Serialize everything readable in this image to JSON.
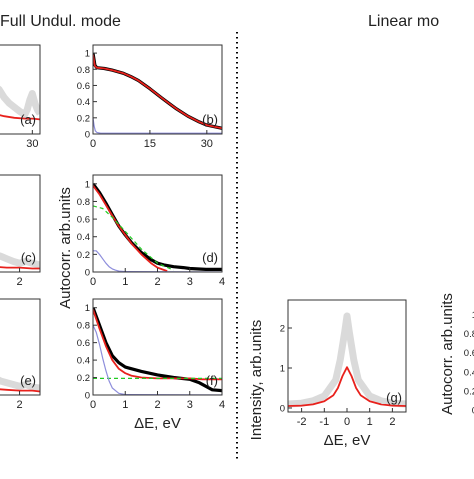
{
  "headers": {
    "left": "Full Undul. mode",
    "right": "Linear mo"
  },
  "chart_data": [
    {
      "id": "a",
      "type": "line",
      "panel_label": "(a)",
      "xticks": [
        {
          "v": 30,
          "t": "30"
        }
      ],
      "yticks": [],
      "xlim": [
        0,
        36
      ],
      "ylim": [
        0,
        1.1
      ],
      "series": [
        {
          "role": "noise",
          "color": "#bbbbbb",
          "x": [
            0,
            4,
            8,
            12,
            16,
            20,
            24,
            26,
            28,
            30,
            32,
            34,
            36
          ],
          "y": [
            0.6,
            0.55,
            0.45,
            0.38,
            0.33,
            0.28,
            0.24,
            0.3,
            0.42,
            0.5,
            0.38,
            0.3,
            0.25
          ]
        },
        {
          "role": "fit",
          "color": "#e8211c",
          "x": [
            0,
            8,
            16,
            24,
            30,
            36
          ],
          "y": [
            0.25,
            0.22,
            0.2,
            0.19,
            0.19,
            0.18
          ]
        }
      ]
    },
    {
      "id": "b",
      "type": "line",
      "panel_label": "(b)",
      "xticks": [
        {
          "v": 0,
          "t": "0"
        },
        {
          "v": 15,
          "t": "15"
        },
        {
          "v": 30,
          "t": "30"
        }
      ],
      "yticks": [
        {
          "v": 0,
          "t": "0"
        },
        {
          "v": 0.2,
          "t": "0.2"
        },
        {
          "v": 0.4,
          "t": "0.4"
        },
        {
          "v": 0.6,
          "t": "0.6"
        },
        {
          "v": 0.8,
          "t": "0.8"
        },
        {
          "v": 1,
          "t": "1"
        }
      ],
      "xlim": [
        0,
        34
      ],
      "ylim": [
        0,
        1.1
      ],
      "series": [
        {
          "role": "data",
          "color": "#000000",
          "x": [
            0,
            0.5,
            1,
            3,
            5,
            8,
            10,
            12,
            15,
            18,
            20,
            22,
            25,
            28,
            30,
            32,
            34
          ],
          "y": [
            1.0,
            0.85,
            0.82,
            0.81,
            0.79,
            0.75,
            0.71,
            0.66,
            0.56,
            0.45,
            0.38,
            0.31,
            0.22,
            0.15,
            0.11,
            0.09,
            0.07
          ]
        },
        {
          "role": "fit",
          "color": "#e8211c",
          "x": [
            0,
            0.5,
            1,
            3,
            5,
            8,
            10,
            12,
            15,
            18,
            20,
            22,
            25,
            28,
            30,
            32,
            34
          ],
          "y": [
            0.98,
            0.84,
            0.82,
            0.81,
            0.79,
            0.75,
            0.71,
            0.66,
            0.56,
            0.45,
            0.38,
            0.31,
            0.22,
            0.15,
            0.11,
            0.09,
            0.07
          ]
        },
        {
          "role": "component",
          "color": "#8e8edc",
          "x": [
            0,
            0.3,
            0.6,
            1,
            2,
            34
          ],
          "y": [
            0.2,
            0.1,
            0.04,
            0.02,
            0.01,
            0.01
          ]
        }
      ]
    },
    {
      "id": "c",
      "type": "line",
      "panel_label": "(c)",
      "xticks": [
        {
          "v": 2,
          "t": "2"
        }
      ],
      "yticks": [],
      "xlim": [
        0,
        3.6
      ],
      "ylim": [
        0,
        1.1
      ],
      "series": [
        {
          "role": "noise",
          "color": "#bbbbbb",
          "x": [
            0,
            0.5,
            1,
            1.5,
            2,
            2.5,
            3,
            3.6
          ],
          "y": [
            0.2,
            0.18,
            0.15,
            0.12,
            0.1,
            0.12,
            0.1,
            0.08
          ]
        },
        {
          "role": "fit",
          "color": "#e8211c",
          "x": [
            0,
            1,
            2,
            3,
            3.6
          ],
          "y": [
            0.06,
            0.05,
            0.05,
            0.04,
            0.04
          ]
        }
      ]
    },
    {
      "id": "d",
      "type": "line",
      "panel_label": "(d)",
      "xticks": [
        {
          "v": 0,
          "t": "0"
        },
        {
          "v": 1,
          "t": "1"
        },
        {
          "v": 2,
          "t": "2"
        },
        {
          "v": 3,
          "t": "3"
        },
        {
          "v": 4,
          "t": "4"
        }
      ],
      "yticks": [
        {
          "v": 0,
          "t": "0"
        },
        {
          "v": 0.2,
          "t": "0.2"
        },
        {
          "v": 0.4,
          "t": "0.4"
        },
        {
          "v": 0.6,
          "t": "0.6"
        },
        {
          "v": 0.8,
          "t": "0.8"
        },
        {
          "v": 1,
          "t": "1"
        }
      ],
      "xlim": [
        0,
        4
      ],
      "ylim": [
        0,
        1.1
      ],
      "series": [
        {
          "role": "data",
          "color": "#000000",
          "x": [
            0,
            0.2,
            0.4,
            0.6,
            0.8,
            1,
            1.2,
            1.5,
            1.8,
            2,
            2.2,
            2.5,
            2.8,
            3,
            3.5,
            4
          ],
          "y": [
            1.0,
            0.9,
            0.78,
            0.65,
            0.52,
            0.42,
            0.33,
            0.22,
            0.14,
            0.1,
            0.08,
            0.06,
            0.05,
            0.04,
            0.03,
            0.03
          ]
        },
        {
          "role": "fit",
          "color": "#e8211c",
          "x": [
            0,
            0.2,
            0.4,
            0.6,
            0.8,
            1,
            1.2,
            1.5,
            1.8,
            2,
            2.3
          ],
          "y": [
            0.98,
            0.88,
            0.76,
            0.64,
            0.52,
            0.42,
            0.32,
            0.2,
            0.1,
            0.05,
            0.01
          ]
        },
        {
          "role": "model",
          "color": "#22cc22",
          "dash": "4 3",
          "x": [
            0,
            0.3,
            0.6,
            1,
            1.5,
            2,
            2.5
          ],
          "y": [
            0.75,
            0.72,
            0.62,
            0.46,
            0.26,
            0.1,
            0.02
          ]
        },
        {
          "role": "component",
          "color": "#8e8edc",
          "x": [
            0,
            0.1,
            0.2,
            0.3,
            0.4,
            0.5,
            0.6,
            0.7,
            0.8,
            1,
            4
          ],
          "y": [
            0.24,
            0.24,
            0.2,
            0.15,
            0.1,
            0.06,
            0.035,
            0.02,
            0.01,
            0.005,
            0.0
          ]
        }
      ]
    },
    {
      "id": "e",
      "type": "line",
      "panel_label": "(e)",
      "xticks": [
        {
          "v": 2,
          "t": "2"
        }
      ],
      "yticks": [],
      "xlim": [
        0,
        3.6
      ],
      "ylim": [
        0,
        1.1
      ],
      "series": [
        {
          "role": "noise",
          "color": "#bbbbbb",
          "x": [
            0,
            0.5,
            1,
            1.5,
            2,
            2.5,
            3,
            3.6
          ],
          "y": [
            0.2,
            0.16,
            0.14,
            0.12,
            0.1,
            0.12,
            0.09,
            0.08
          ]
        },
        {
          "role": "fit",
          "color": "#e8211c",
          "x": [
            0,
            1,
            2,
            3,
            3.6
          ],
          "y": [
            0.07,
            0.06,
            0.05,
            0.05,
            0.04
          ]
        }
      ]
    },
    {
      "id": "f",
      "type": "line",
      "panel_label": "(f)",
      "xlabel": "ΔE, eV",
      "xticks": [
        {
          "v": 0,
          "t": "0"
        },
        {
          "v": 1,
          "t": "1"
        },
        {
          "v": 2,
          "t": "2"
        },
        {
          "v": 3,
          "t": "3"
        },
        {
          "v": 4,
          "t": "4"
        }
      ],
      "yticks": [
        {
          "v": 0,
          "t": "0"
        },
        {
          "v": 0.2,
          "t": "0.2"
        },
        {
          "v": 0.4,
          "t": "0.4"
        },
        {
          "v": 0.6,
          "t": "0.6"
        },
        {
          "v": 0.8,
          "t": "0.8"
        },
        {
          "v": 1,
          "t": "1"
        }
      ],
      "xlim": [
        0,
        4
      ],
      "ylim": [
        0,
        1.1
      ],
      "series": [
        {
          "role": "data",
          "color": "#000000",
          "x": [
            0,
            0.2,
            0.4,
            0.6,
            0.8,
            1,
            1.2,
            1.5,
            2,
            2.5,
            3,
            3.3,
            3.5,
            3.7,
            4
          ],
          "y": [
            1.0,
            0.8,
            0.6,
            0.45,
            0.37,
            0.32,
            0.3,
            0.27,
            0.23,
            0.2,
            0.18,
            0.14,
            0.1,
            0.06,
            0.05
          ]
        },
        {
          "role": "fit",
          "color": "#e8211c",
          "x": [
            0,
            0.2,
            0.4,
            0.6,
            0.8,
            1,
            1.2,
            1.5,
            2,
            2.5,
            3,
            3.4,
            4
          ],
          "y": [
            0.98,
            0.76,
            0.56,
            0.4,
            0.3,
            0.25,
            0.22,
            0.2,
            0.19,
            0.19,
            0.19,
            0.18,
            0.18
          ]
        },
        {
          "role": "model",
          "color": "#22cc22",
          "dash": "4 3",
          "x": [
            0,
            4
          ],
          "y": [
            0.19,
            0.19
          ]
        },
        {
          "role": "component",
          "color": "#8e8edc",
          "x": [
            0,
            0.1,
            0.2,
            0.3,
            0.4,
            0.5,
            0.6,
            0.8,
            1,
            4
          ],
          "y": [
            0.8,
            0.72,
            0.58,
            0.42,
            0.28,
            0.16,
            0.08,
            0.02,
            0.005,
            0.0
          ]
        }
      ]
    },
    {
      "id": "g",
      "type": "line",
      "panel_label": "(g)",
      "xlabel": "ΔE, eV",
      "xticks": [
        {
          "v": -2,
          "t": "-2"
        },
        {
          "v": -1,
          "t": "-1"
        },
        {
          "v": 0,
          "t": "0"
        },
        {
          "v": 1,
          "t": "1"
        },
        {
          "v": 2,
          "t": "2"
        }
      ],
      "yticks": [
        {
          "v": 0,
          "t": "0"
        },
        {
          "v": 1,
          "t": "1"
        },
        {
          "v": 2,
          "t": "2"
        }
      ],
      "xlim": [
        -2.6,
        2.6
      ],
      "ylim": [
        -0.1,
        2.7
      ],
      "series": [
        {
          "role": "noise",
          "color": "#bbbbbb",
          "x": [
            -2.6,
            -2,
            -1.5,
            -1,
            -0.5,
            -0.3,
            -0.1,
            0,
            0.1,
            0.3,
            0.5,
            1,
            1.5,
            2,
            2.6
          ],
          "y": [
            0.1,
            0.12,
            0.18,
            0.3,
            0.7,
            1.2,
            1.9,
            2.3,
            1.9,
            1.2,
            0.7,
            0.3,
            0.18,
            0.12,
            0.1
          ]
        },
        {
          "role": "fit",
          "color": "#e8211c",
          "x": [
            -2.6,
            -2,
            -1.5,
            -1,
            -0.6,
            -0.4,
            -0.2,
            0,
            0.2,
            0.4,
            0.6,
            1,
            1.5,
            2,
            2.6
          ],
          "y": [
            0.05,
            0.06,
            0.09,
            0.17,
            0.32,
            0.5,
            0.8,
            1.02,
            0.8,
            0.5,
            0.32,
            0.17,
            0.09,
            0.06,
            0.05
          ]
        }
      ]
    },
    {
      "id": "h",
      "type": "line",
      "yticks": [
        {
          "v": 0,
          "t": "0"
        },
        {
          "v": 0.2,
          "t": "0.2"
        },
        {
          "v": 0.4,
          "t": "0.4"
        },
        {
          "v": 0.6,
          "t": "0.6"
        },
        {
          "v": 0.8,
          "t": "0.8"
        },
        {
          "v": 1,
          "t": "1"
        }
      ],
      "xticks": [],
      "xlim": [
        0,
        1
      ],
      "ylim": [
        0,
        1.1
      ],
      "series": []
    }
  ],
  "axis_titles": {
    "autocorr": "Autocorr. arb.units",
    "intensity": "Intensity, arb.units"
  }
}
